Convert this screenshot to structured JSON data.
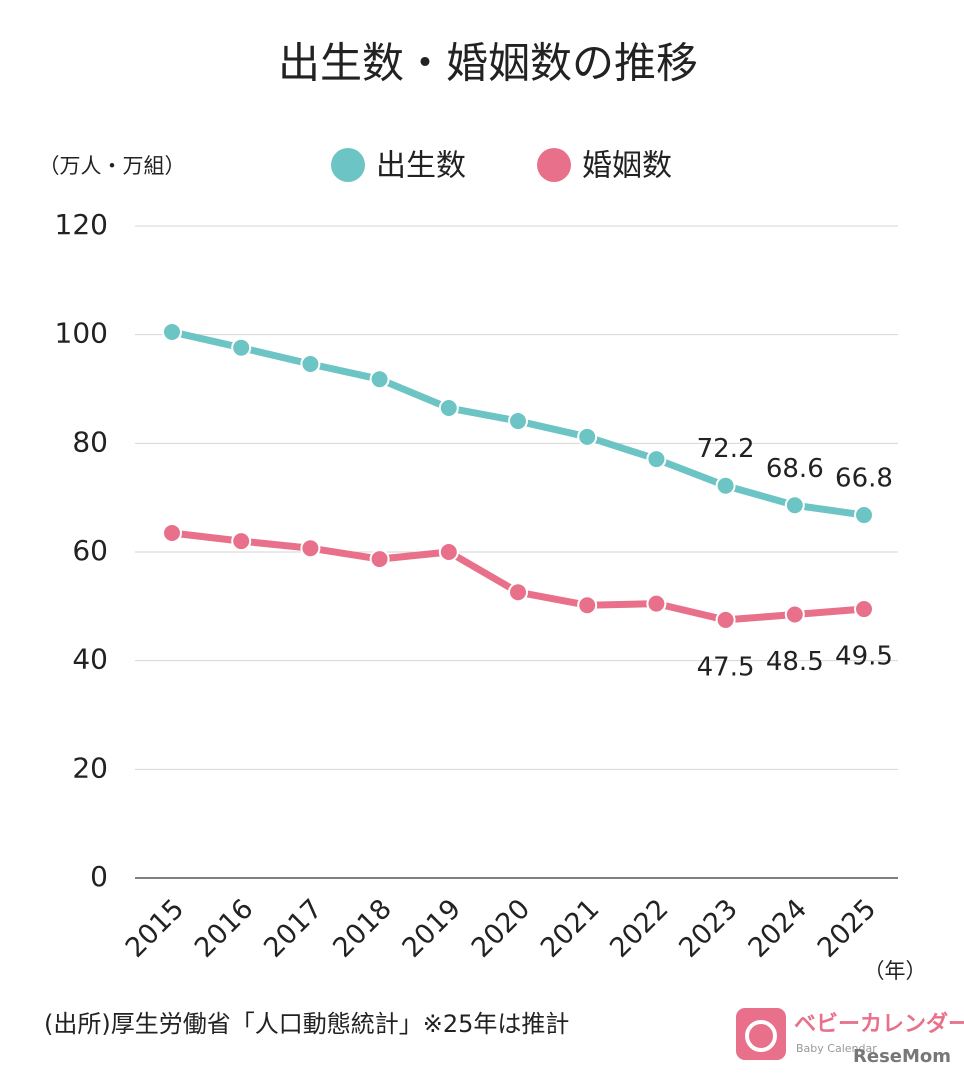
{
  "chart_data": {
    "type": "line",
    "title": "出生数・婚姻数の推移",
    "y_label": "（万人・万組）",
    "x_label": "（年）",
    "categories": [
      "2015",
      "2016",
      "2017",
      "2018",
      "2019",
      "2020",
      "2021",
      "2022",
      "2023",
      "2024",
      "2025"
    ],
    "series": [
      {
        "name": "出生数",
        "color": "#6cc5c4",
        "values": [
          100.5,
          97.6,
          94.6,
          91.8,
          86.5,
          84.1,
          81.2,
          77.1,
          72.2,
          68.6,
          66.8
        ],
        "value_labels": [
          null,
          null,
          null,
          null,
          null,
          null,
          null,
          null,
          "72.2",
          "68.6",
          "66.8"
        ]
      },
      {
        "name": "婚姻数",
        "color": "#e8708a",
        "values": [
          63.5,
          62.0,
          60.7,
          58.7,
          60.0,
          52.6,
          50.2,
          50.5,
          47.5,
          48.5,
          49.5
        ],
        "value_labels": [
          null,
          null,
          null,
          null,
          null,
          null,
          null,
          null,
          "47.5",
          "48.5",
          "49.5"
        ]
      }
    ],
    "ylim": [
      0,
      120
    ],
    "yticks": [
      0,
      20,
      40,
      60,
      80,
      100,
      120
    ],
    "grid": true,
    "legend": "top",
    "source": "(出所)厚生労働省「人口動態統計」※25年は推計",
    "logo": {
      "name": "ベビーカレンダー",
      "sub": "Baby Calendar",
      "partner": "ReseMom"
    }
  }
}
